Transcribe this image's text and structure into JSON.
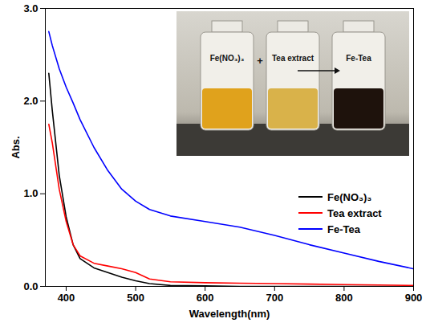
{
  "chart_data": {
    "type": "line",
    "x_label": "Wavelength(nm)",
    "y_label": "Abs.",
    "x": [
      375,
      380,
      390,
      400,
      410,
      420,
      440,
      460,
      480,
      500,
      520,
      550,
      600,
      650,
      700,
      750,
      800,
      850,
      900
    ],
    "series": [
      {
        "name": "Fe(NO₃)₃",
        "color": "#000000",
        "values": [
          2.3,
          1.9,
          1.2,
          0.75,
          0.45,
          0.3,
          0.2,
          0.15,
          0.1,
          0.06,
          0.03,
          0.01,
          0.005,
          0,
          0,
          0,
          0,
          0,
          0
        ]
      },
      {
        "name": "Tea extract",
        "color": "#ff0000",
        "values": [
          1.75,
          1.55,
          1.05,
          0.7,
          0.45,
          0.33,
          0.25,
          0.22,
          0.19,
          0.15,
          0.08,
          0.05,
          0.04,
          0.035,
          0.03,
          0.025,
          0.02,
          0.015,
          0.01
        ]
      },
      {
        "name": "Fe-Tea",
        "color": "#0000ff",
        "values": [
          2.75,
          2.6,
          2.35,
          2.15,
          1.98,
          1.8,
          1.5,
          1.25,
          1.05,
          0.92,
          0.83,
          0.76,
          0.7,
          0.64,
          0.55,
          0.45,
          0.36,
          0.27,
          0.19
        ]
      }
    ],
    "xlim": [
      370,
      900
    ],
    "xticks": [
      400,
      500,
      600,
      700,
      800,
      900
    ],
    "ylim": [
      0,
      3
    ],
    "yticks": [
      0,
      1,
      2,
      3
    ],
    "legend": "lower right",
    "inset_labels": [
      "Fe(NO₃)₃",
      "+",
      "Tea extract",
      "Fe-Tea"
    ]
  }
}
